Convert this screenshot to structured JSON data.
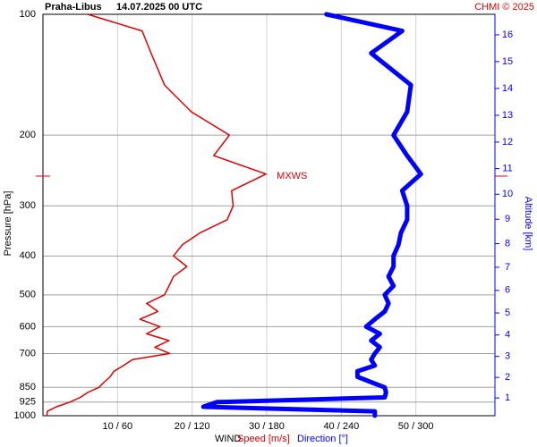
{
  "chart_data": {
    "type": "profile",
    "title": "Praha-Libus",
    "subtitle": "14.07.2025 00 UTC",
    "credit": "CHMI © 2025",
    "ylabel": "Pressure [hPa]",
    "y2label": "Altitude [km]",
    "legend_title": "WIND",
    "ylim": [
      1000,
      100
    ],
    "log_y": true,
    "yticks": [
      100,
      200,
      300,
      400,
      500,
      600,
      700,
      850,
      925,
      1000
    ],
    "y2ticks": [
      1,
      2,
      3,
      4,
      5,
      6,
      7,
      8,
      9,
      10,
      11,
      12,
      13,
      14,
      15,
      16
    ],
    "xlim": [
      0,
      60
    ],
    "x2lim": [
      0,
      360
    ],
    "xticks": [
      {
        "value": 10,
        "label": "10 / 60"
      },
      {
        "value": 20,
        "label": "20 / 120"
      },
      {
        "value": 30,
        "label": "30 / 180"
      },
      {
        "value": 40,
        "label": "40 / 240"
      },
      {
        "value": 50,
        "label": "50 / 300"
      }
    ],
    "grid": true,
    "pressure": [
      1000,
      975,
      950,
      925,
      900,
      875,
      850,
      825,
      800,
      775,
      750,
      725,
      700,
      675,
      650,
      625,
      600,
      575,
      550,
      525,
      500,
      475,
      450,
      425,
      400,
      375,
      350,
      325,
      300,
      275,
      250,
      225,
      200,
      175,
      150,
      125,
      110,
      100
    ],
    "series": [
      {
        "name": "Speed [m/s]",
        "color": "#e00000",
        "values": [
          0.5,
          0.6,
          1.8,
          3.6,
          5,
          6,
          7.5,
          8.2,
          9,
          9.5,
          10.8,
          12,
          17,
          15,
          16.9,
          13.9,
          15.7,
          13,
          15.4,
          13.9,
          16.3,
          16.9,
          17.5,
          19.3,
          17.5,
          18.7,
          21.1,
          24.7,
          25.5,
          25.3,
          29.9,
          22.9,
          25,
          19.9,
          16.3,
          14.5,
          13.3,
          6
        ]
      },
      {
        "name": "Direction [°]",
        "color": "#0000ff",
        "axis": "x2",
        "values": [
          267,
          267,
          129,
          140,
          275,
          276,
          275,
          264,
          253,
          253,
          267,
          264,
          267,
          271,
          264,
          271,
          260,
          267,
          275,
          278,
          275,
          282,
          278,
          282,
          282,
          286,
          288,
          293,
          293,
          289,
          304,
          293,
          282,
          293,
          296,
          264,
          289,
          228
        ]
      }
    ],
    "annotation": {
      "text": "MXWS",
      "pressure": 253
    }
  }
}
